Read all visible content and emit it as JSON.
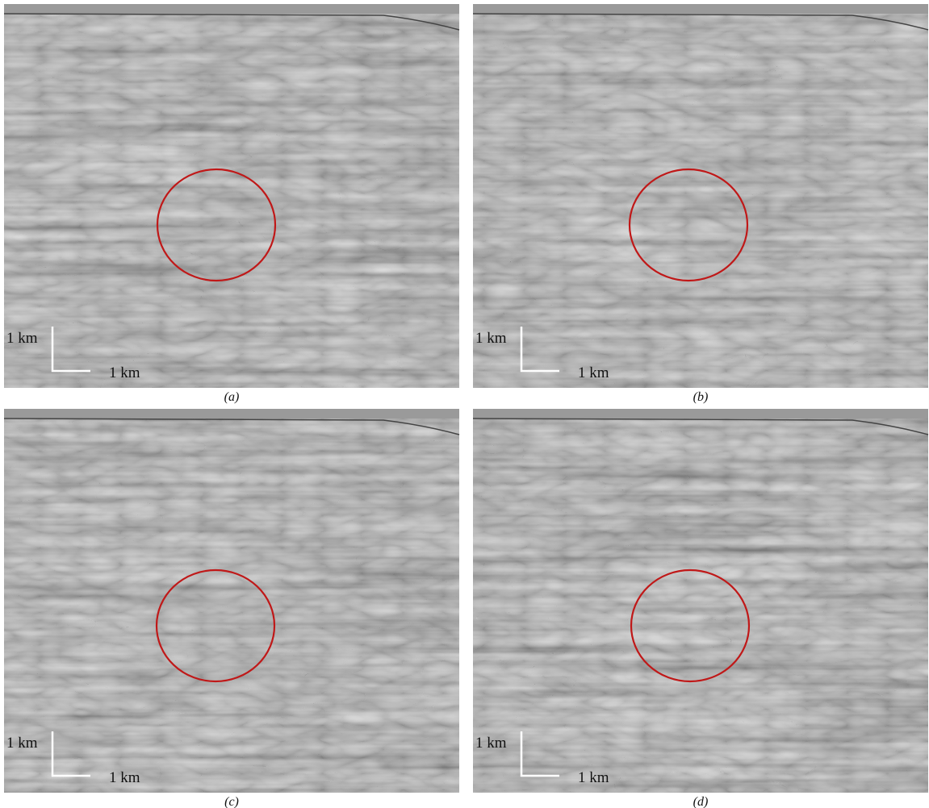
{
  "panels": [
    {
      "scale_vertical": "1 km",
      "scale_horizontal": "1 km",
      "caption": "(a)"
    },
    {
      "scale_vertical": "1 km",
      "scale_horizontal": "1 km",
      "caption": "(b)"
    },
    {
      "scale_vertical": "1 km",
      "scale_horizontal": "1 km",
      "caption": "(c)"
    },
    {
      "scale_vertical": "1 km",
      "scale_horizontal": "1 km",
      "caption": "(d)"
    }
  ]
}
